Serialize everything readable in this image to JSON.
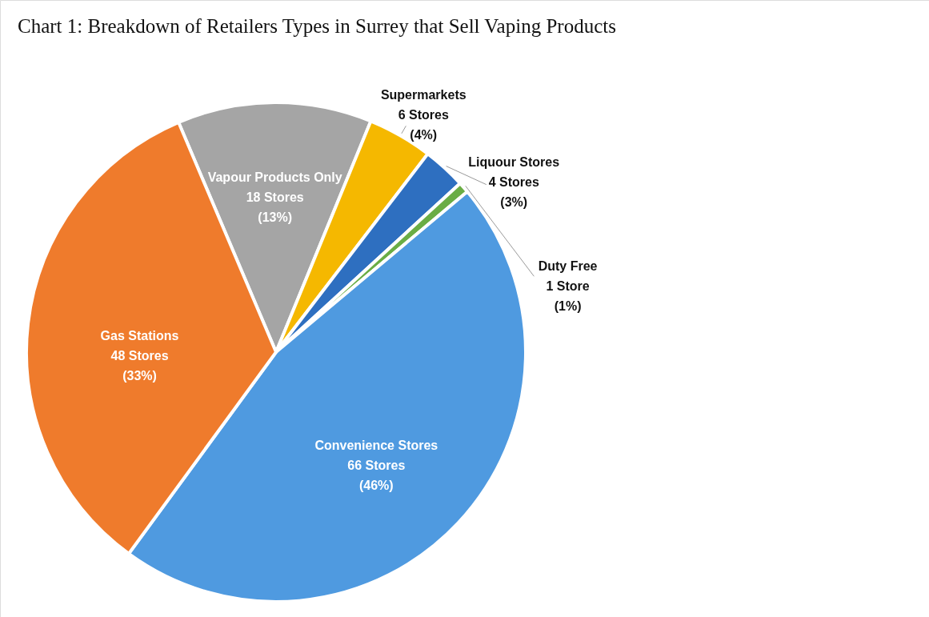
{
  "chart_data": {
    "type": "pie",
    "title": "Chart 1: Breakdown of Retailers Types in Surrey that Sell Vaping Products",
    "categories": [
      "Vapour Products Only",
      "Supermarkets",
      "Liquour Stores",
      "Duty Free",
      "Convenience Stores",
      "Gas Stations"
    ],
    "values": [
      18,
      6,
      4,
      1,
      66,
      48
    ],
    "colors": [
      "#a5a5a5",
      "#f5b800",
      "#2e6fc0",
      "#6aad45",
      "#4f9ae0",
      "#ef7b2c"
    ],
    "value_labels": [
      "18 Stores\n(13%)",
      "6 Stores\n(4%)",
      "4 Stores\n(3%)",
      "1 Store\n(1%)",
      "66 Stores\n(46%)",
      "48 Stores\n(33%)"
    ]
  }
}
